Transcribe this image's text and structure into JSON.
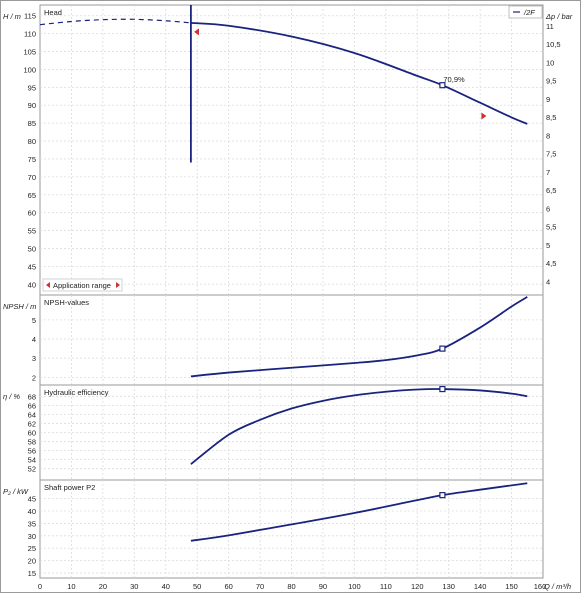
{
  "colors": {
    "curve": "#1a237e",
    "grid": "#dcdcdc",
    "frame": "#9a9a9a",
    "marker": "#d32f2f"
  },
  "x_axis": {
    "label": "Q / m³/h",
    "ticks": [
      0,
      10,
      20,
      30,
      40,
      50,
      60,
      70,
      80,
      90,
      100,
      110,
      120,
      130,
      140,
      150,
      160
    ],
    "range": [
      0,
      160
    ]
  },
  "operating_point": {
    "x": 128
  },
  "chart_data": [
    {
      "id": "head",
      "type": "line",
      "title": "Head",
      "ylabel": "H / m",
      "y2label": "Δp / bar",
      "ylim": [
        37,
        118
      ],
      "y_ticks": [
        40,
        45,
        50,
        55,
        60,
        65,
        70,
        75,
        80,
        85,
        90,
        95,
        100,
        105,
        110,
        115
      ],
      "y2_ticks": [
        "4",
        "4,5",
        "5",
        "5,5",
        "6",
        "6,5",
        "7",
        "7,5",
        "8",
        "8,5",
        "9",
        "9,5",
        "10",
        "10,5",
        "11"
      ],
      "y2_values": [
        4,
        4.5,
        5,
        5.5,
        6,
        6.5,
        7,
        7.5,
        8,
        8.5,
        9,
        9.5,
        10,
        10.5,
        11
      ],
      "bar_to_m": 10.2,
      "legend": "/2F",
      "series_dashed": {
        "x": [
          0,
          10,
          20,
          30,
          40,
          48
        ],
        "y": [
          112.5,
          113.4,
          113.9,
          114.0,
          113.6,
          113.0
        ]
      },
      "series": {
        "x": [
          48,
          60,
          80,
          100,
          120,
          128,
          140,
          150,
          155
        ],
        "y": [
          113.0,
          112.2,
          109.2,
          104.6,
          98.2,
          95.6,
          90.7,
          86.6,
          84.8
        ]
      },
      "duty_line_x": 48,
      "duty_line_y": [
        74,
        118
      ],
      "point_label": "70,9%",
      "application_range_label": "Application range",
      "range_markers": [
        {
          "x": 49,
          "y": 110.5,
          "dir": "left"
        },
        {
          "x": 142,
          "y": 87,
          "dir": "right"
        }
      ]
    },
    {
      "id": "npsh",
      "type": "line",
      "title": "NPSH-values",
      "ylabel": "NPSH / m",
      "ylim": [
        1.6,
        6.3
      ],
      "y_ticks": [
        2,
        3,
        4,
        5
      ],
      "series": {
        "x": [
          48,
          60,
          80,
          100,
          110,
          120,
          128,
          140,
          150,
          155
        ],
        "y": [
          2.05,
          2.25,
          2.5,
          2.75,
          2.9,
          3.15,
          3.5,
          4.6,
          5.7,
          6.2
        ]
      }
    },
    {
      "id": "efficiency",
      "type": "line",
      "title": "Hydraulic efficiency",
      "ylabel": "η / %",
      "ylim": [
        49.5,
        70.5
      ],
      "y_ticks": [
        52,
        54,
        56,
        58,
        60,
        62,
        64,
        66,
        68
      ],
      "series": {
        "x": [
          48,
          60,
          70,
          80,
          90,
          100,
          110,
          120,
          128,
          140,
          150,
          155
        ],
        "y": [
          53.0,
          59.5,
          62.8,
          65.3,
          67.0,
          68.2,
          69.0,
          69.5,
          69.6,
          69.3,
          68.6,
          68.0
        ]
      }
    },
    {
      "id": "power",
      "type": "line",
      "title": "Shaft power P2",
      "ylabel": "P₂ / kW",
      "ylim": [
        13,
        52.5
      ],
      "y_ticks": [
        15,
        20,
        25,
        30,
        35,
        40,
        45
      ],
      "series": {
        "x": [
          48,
          60,
          80,
          100,
          120,
          128,
          140,
          155
        ],
        "y": [
          28.0,
          30.2,
          34.6,
          39.2,
          44.4,
          46.4,
          48.6,
          51.2
        ]
      }
    }
  ]
}
